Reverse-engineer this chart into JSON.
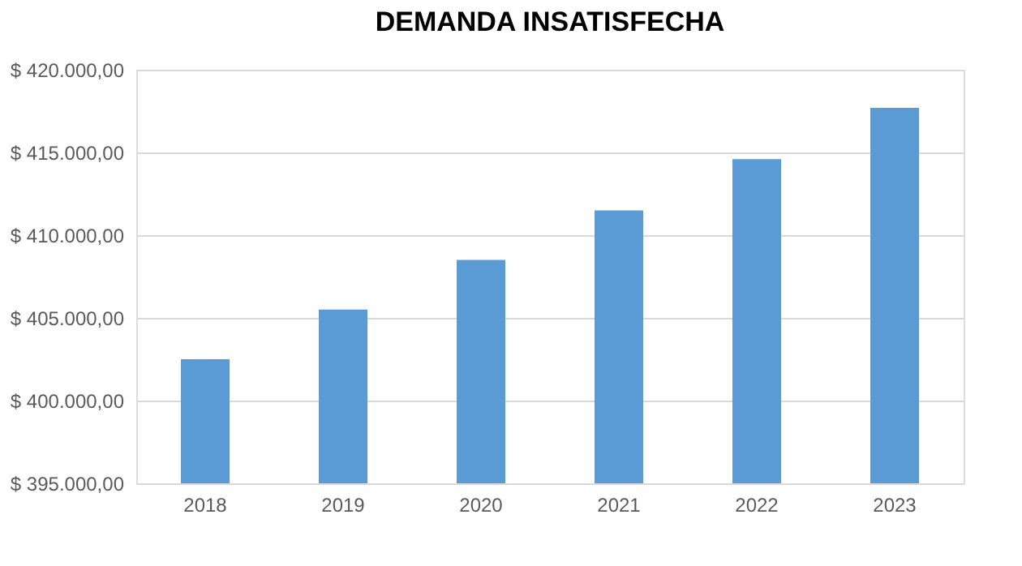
{
  "chart_data": {
    "type": "bar",
    "title": "DEMANDA INSATISFECHA",
    "categories": [
      "2018",
      "2019",
      "2020",
      "2021",
      "2022",
      "2023"
    ],
    "values": [
      402500,
      405500,
      408500,
      411500,
      414600,
      417700
    ],
    "color": "#5b9bd5",
    "ylim": [
      395000,
      420000
    ],
    "yticks": [
      {
        "value": 395000,
        "label": "$ 395.000,00"
      },
      {
        "value": 400000,
        "label": "$ 400.000,00"
      },
      {
        "value": 405000,
        "label": "$ 405.000,00"
      },
      {
        "value": 410000,
        "label": "$ 410.000,00"
      },
      {
        "value": 415000,
        "label": "$ 415.000,00"
      },
      {
        "value": 420000,
        "label": "$ 420.000,00"
      }
    ],
    "grid": "y"
  }
}
